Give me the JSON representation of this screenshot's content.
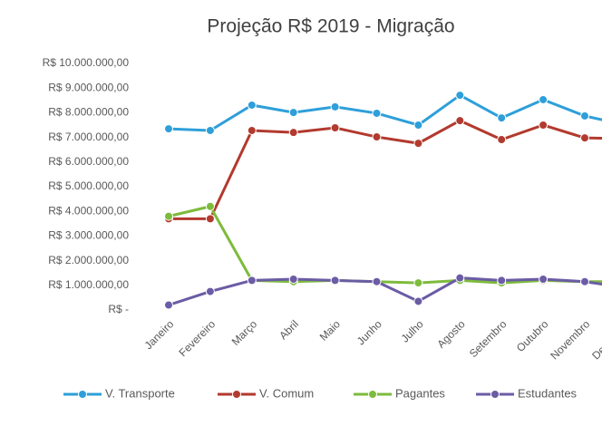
{
  "chart_data": {
    "type": "line",
    "title": "Projeção R$ 2019 - Migração",
    "categories": [
      "Janeiro",
      "Fevereiro",
      "Março",
      "Abril",
      "Maio",
      "Junho",
      "Julho",
      "Agosto",
      "Setembro",
      "Outubro",
      "Novembro",
      "Dezembro"
    ],
    "series": [
      {
        "name": "V. Transporte",
        "color": "#2e9fd9",
        "values": [
          7350000,
          7280000,
          8310000,
          8010000,
          8240000,
          7980000,
          7500000,
          8710000,
          7790000,
          8530000,
          7870000,
          7500000
        ]
      },
      {
        "name": "V. Comum",
        "color": "#b23a2e",
        "values": [
          3700000,
          3700000,
          7280000,
          7200000,
          7390000,
          7020000,
          6760000,
          7680000,
          6910000,
          7500000,
          6980000,
          6950000
        ]
      },
      {
        "name": "Pagantes",
        "color": "#7dbb3c",
        "values": [
          3800000,
          4200000,
          1200000,
          1150000,
          1200000,
          1150000,
          1100000,
          1200000,
          1100000,
          1200000,
          1150000,
          1150000
        ]
      },
      {
        "name": "Estudantes",
        "color": "#6b5ca5",
        "values": [
          200000,
          750000,
          1200000,
          1250000,
          1200000,
          1150000,
          350000,
          1300000,
          1200000,
          1250000,
          1150000,
          900000
        ]
      }
    ],
    "ylim": [
      0,
      10000000
    ],
    "yticks": [
      {
        "value": 0,
        "label": "R$ -"
      },
      {
        "value": 1000000,
        "label": "R$ 1.000.000,00"
      },
      {
        "value": 2000000,
        "label": "R$ 2.000.000,00"
      },
      {
        "value": 3000000,
        "label": "R$ 3.000.000,00"
      },
      {
        "value": 4000000,
        "label": "R$ 4.000.000,00"
      },
      {
        "value": 5000000,
        "label": "R$ 5.000.000,00"
      },
      {
        "value": 6000000,
        "label": "R$ 6.000.000,00"
      },
      {
        "value": 7000000,
        "label": "R$ 7.000.000,00"
      },
      {
        "value": 8000000,
        "label": "R$ 8.000.000,00"
      },
      {
        "value": 9000000,
        "label": "R$ 9.000.000,00"
      },
      {
        "value": 10000000,
        "label": "R$ 10.000.000,00"
      }
    ],
    "grid": false,
    "legend": "bottom"
  }
}
